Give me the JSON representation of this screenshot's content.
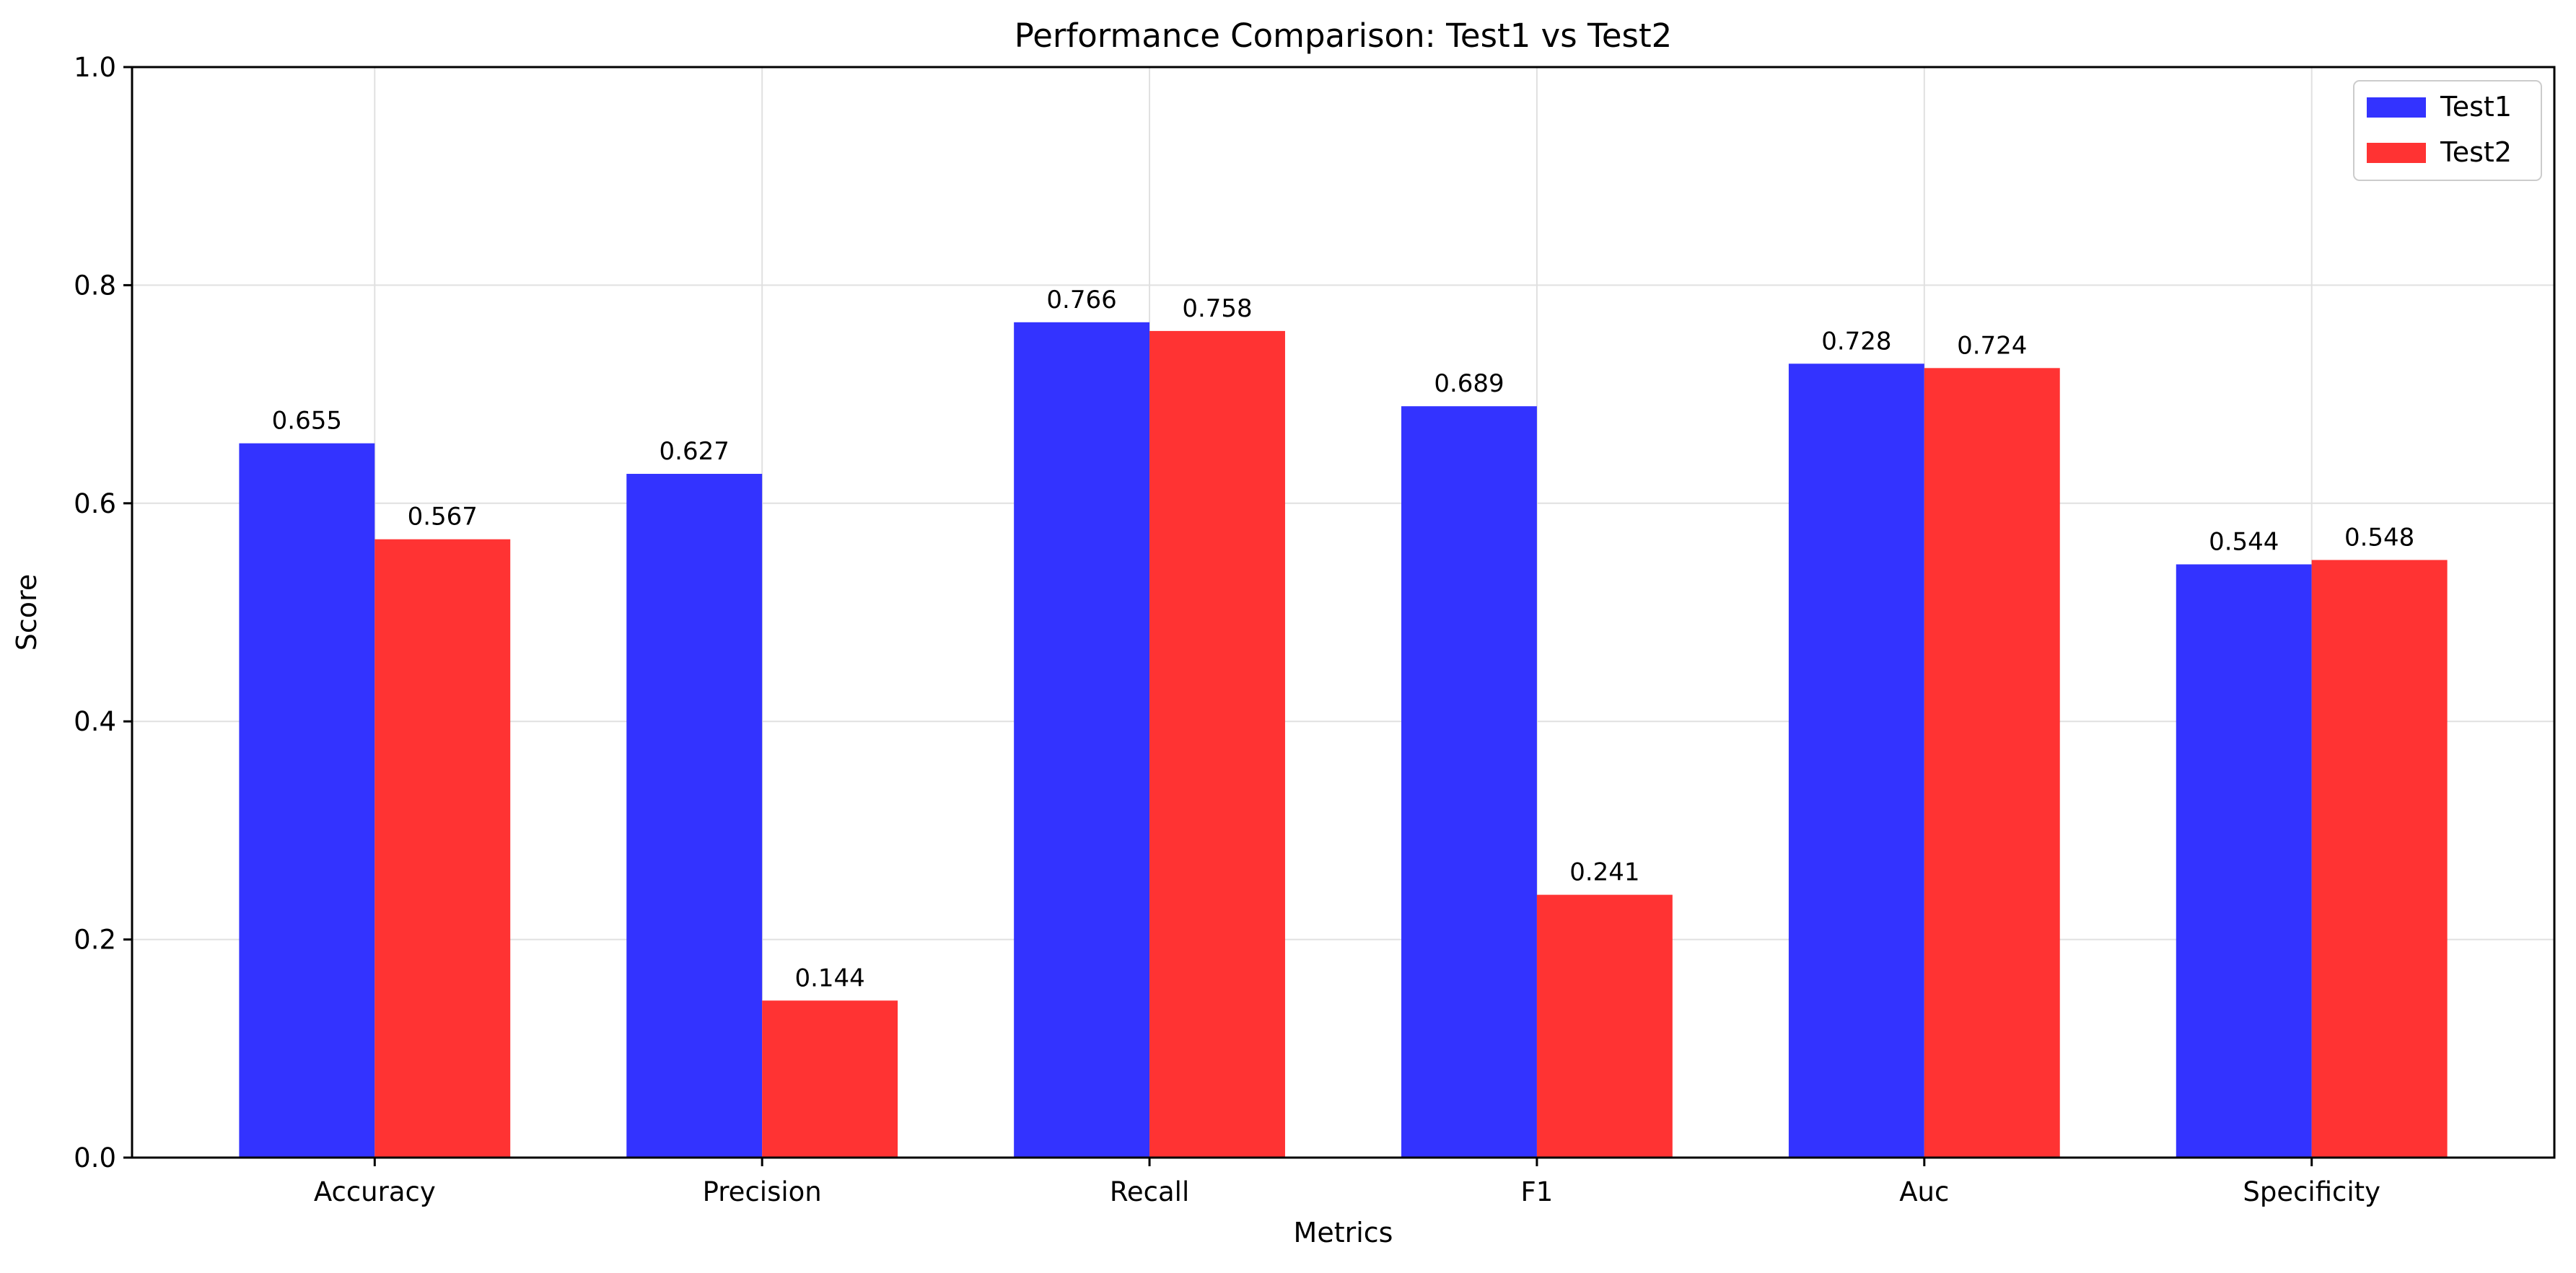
{
  "chart_data": {
    "type": "bar",
    "title": "Performance Comparison: Test1 vs Test2",
    "xlabel": "Metrics",
    "ylabel": "Score",
    "categories": [
      "Accuracy",
      "Precision",
      "Recall",
      "F1",
      "Auc",
      "Specificity"
    ],
    "series": [
      {
        "name": "Test1",
        "color": "#3333ff",
        "values": [
          0.655,
          0.627,
          0.766,
          0.689,
          0.728,
          0.544
        ],
        "labels": [
          "0.655",
          "0.627",
          "0.766",
          "0.689",
          "0.728",
          "0.544"
        ]
      },
      {
        "name": "Test2",
        "color": "#ff3333",
        "values": [
          0.567,
          0.144,
          0.758,
          0.241,
          0.724,
          0.548
        ],
        "labels": [
          "0.567",
          "0.144",
          "0.758",
          "0.241",
          "0.724",
          "0.548"
        ]
      }
    ],
    "ylim": [
      0,
      1.0
    ],
    "yticks": [
      "0.0",
      "0.2",
      "0.4",
      "0.6",
      "0.8",
      "1.0"
    ],
    "grid": true,
    "legend_position": "upper right"
  }
}
